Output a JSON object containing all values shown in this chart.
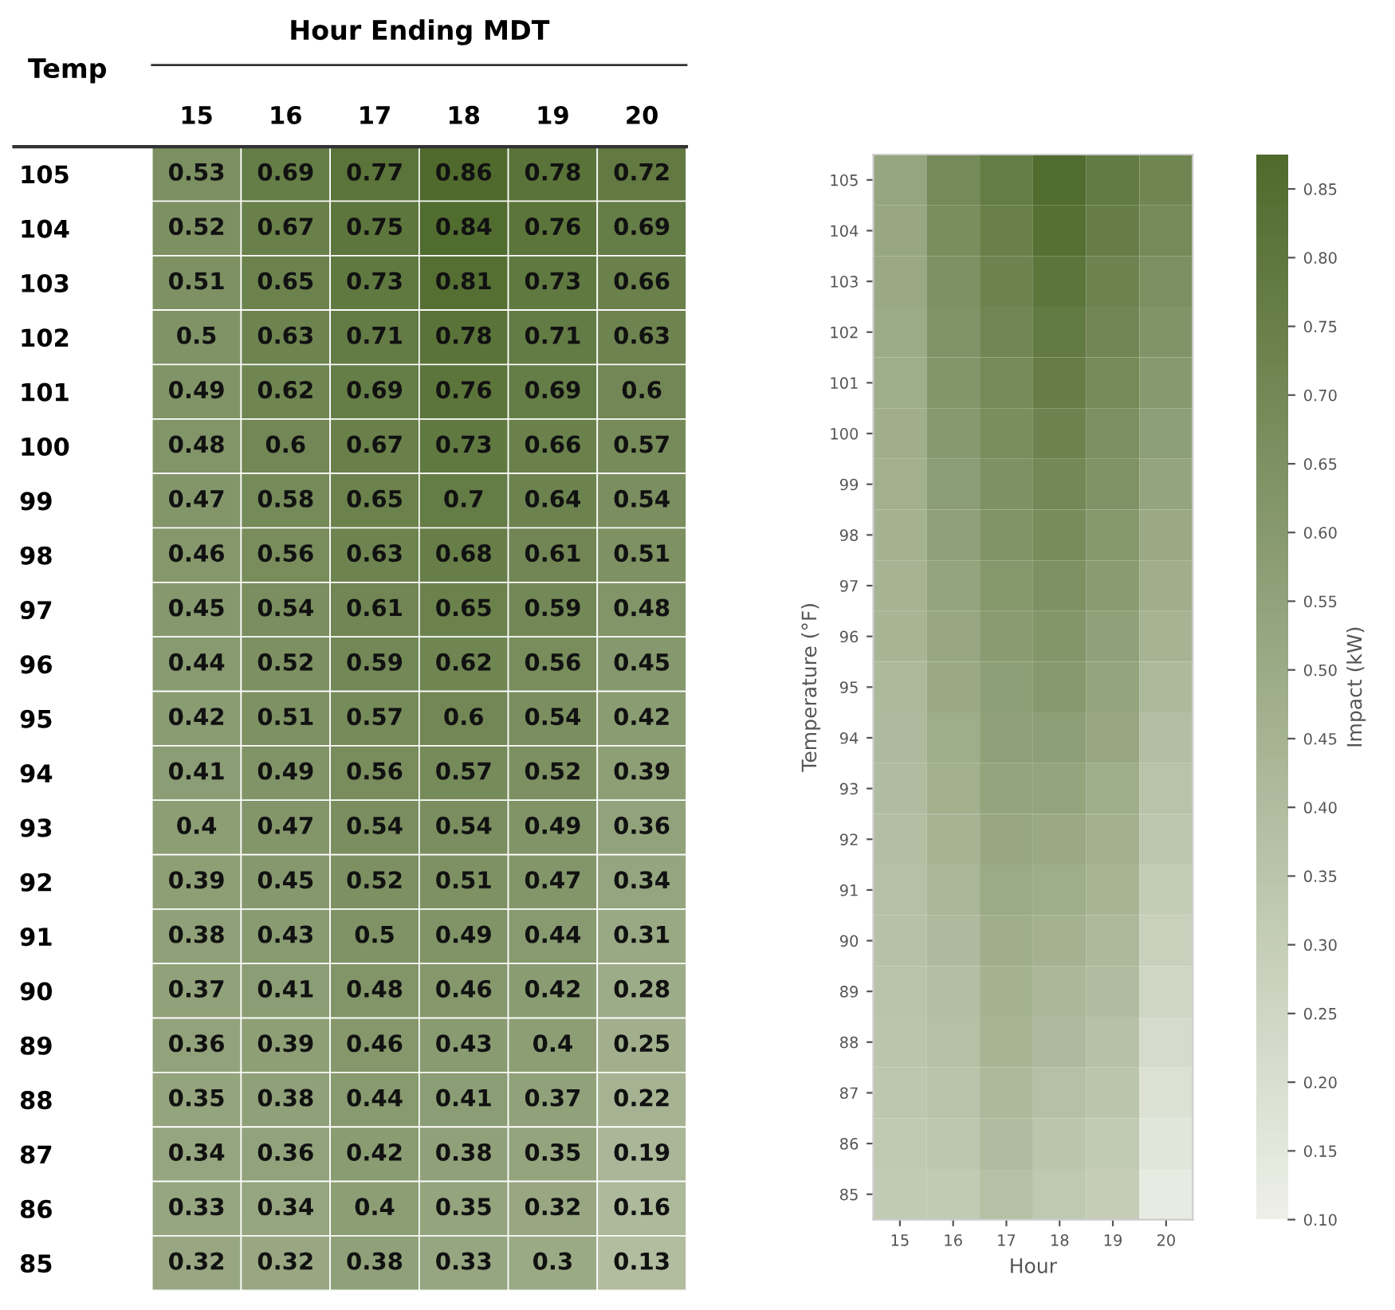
{
  "chart_data": [
    {
      "type": "heatmap",
      "title": "Hour Ending MDT",
      "ylabel": "Temp",
      "data_labels": true,
      "categories": [
        "15",
        "16",
        "17",
        "18",
        "19",
        "20"
      ],
      "y_categories": [
        "105",
        "104",
        "103",
        "102",
        "101",
        "100",
        "99",
        "98",
        "97",
        "96",
        "95",
        "94",
        "93",
        "92",
        "91",
        "90",
        "89",
        "88",
        "87",
        "86",
        "85"
      ],
      "colors": [
        "#eef0e8",
        "#4f6a2c"
      ],
      "cells": [
        [
          0.53,
          0.69,
          0.77,
          0.86,
          0.78,
          0.72
        ],
        [
          0.52,
          0.67,
          0.75,
          0.84,
          0.76,
          0.69
        ],
        [
          0.51,
          0.65,
          0.73,
          0.81,
          0.73,
          0.66
        ],
        [
          0.5,
          0.63,
          0.71,
          0.78,
          0.71,
          0.63
        ],
        [
          0.49,
          0.62,
          0.69,
          0.76,
          0.69,
          0.6
        ],
        [
          0.48,
          0.6,
          0.67,
          0.73,
          0.66,
          0.57
        ],
        [
          0.47,
          0.58,
          0.65,
          0.7,
          0.64,
          0.54
        ],
        [
          0.46,
          0.56,
          0.63,
          0.68,
          0.61,
          0.51
        ],
        [
          0.45,
          0.54,
          0.61,
          0.65,
          0.59,
          0.48
        ],
        [
          0.44,
          0.52,
          0.59,
          0.62,
          0.56,
          0.45
        ],
        [
          0.42,
          0.51,
          0.57,
          0.6,
          0.54,
          0.42
        ],
        [
          0.41,
          0.49,
          0.56,
          0.57,
          0.52,
          0.39
        ],
        [
          0.4,
          0.47,
          0.54,
          0.54,
          0.49,
          0.36
        ],
        [
          0.39,
          0.45,
          0.52,
          0.51,
          0.47,
          0.34
        ],
        [
          0.38,
          0.43,
          0.5,
          0.49,
          0.44,
          0.31
        ],
        [
          0.37,
          0.41,
          0.48,
          0.46,
          0.42,
          0.28
        ],
        [
          0.36,
          0.39,
          0.46,
          0.43,
          0.4,
          0.25
        ],
        [
          0.35,
          0.38,
          0.44,
          0.41,
          0.37,
          0.22
        ],
        [
          0.34,
          0.36,
          0.42,
          0.38,
          0.35,
          0.19
        ],
        [
          0.33,
          0.34,
          0.4,
          0.35,
          0.32,
          0.16
        ],
        [
          0.32,
          0.32,
          0.38,
          0.33,
          0.3,
          0.13
        ]
      ]
    },
    {
      "type": "heatmap",
      "xlabel": "Hour",
      "ylabel": "Temperature (°F)",
      "clabel": "Impact (kW)",
      "categories": [
        "15",
        "16",
        "17",
        "18",
        "19",
        "20"
      ],
      "y_categories": [
        "105",
        "104",
        "103",
        "102",
        "101",
        "100",
        "99",
        "98",
        "97",
        "96",
        "95",
        "94",
        "93",
        "92",
        "91",
        "90",
        "89",
        "88",
        "87",
        "86",
        "85"
      ],
      "colors": [
        "#eef0e8",
        "#4f6a2c"
      ],
      "clim": [
        0.1,
        0.875
      ],
      "cticks": [
        {
          "value": 0.1,
          "label": "0.10"
        },
        {
          "value": 0.15,
          "label": "0.15"
        },
        {
          "value": 0.2,
          "label": "0.20"
        },
        {
          "value": 0.25,
          "label": "0.25"
        },
        {
          "value": 0.3,
          "label": "0.30"
        },
        {
          "value": 0.35,
          "label": "0.35"
        },
        {
          "value": 0.4,
          "label": "0.40"
        },
        {
          "value": 0.45,
          "label": "0.45"
        },
        {
          "value": 0.5,
          "label": "0.50"
        },
        {
          "value": 0.55,
          "label": "0.55"
        },
        {
          "value": 0.6,
          "label": "0.60"
        },
        {
          "value": 0.65,
          "label": "0.65"
        },
        {
          "value": 0.7,
          "label": "0.70"
        },
        {
          "value": 0.75,
          "label": "0.75"
        },
        {
          "value": 0.8,
          "label": "0.80"
        },
        {
          "value": 0.85,
          "label": "0.85"
        }
      ],
      "cells": [
        [
          0.53,
          0.69,
          0.77,
          0.86,
          0.78,
          0.72
        ],
        [
          0.52,
          0.67,
          0.75,
          0.84,
          0.76,
          0.69
        ],
        [
          0.51,
          0.65,
          0.73,
          0.81,
          0.73,
          0.66
        ],
        [
          0.5,
          0.63,
          0.71,
          0.78,
          0.71,
          0.63
        ],
        [
          0.49,
          0.62,
          0.69,
          0.76,
          0.69,
          0.6
        ],
        [
          0.48,
          0.6,
          0.67,
          0.73,
          0.66,
          0.57
        ],
        [
          0.47,
          0.58,
          0.65,
          0.7,
          0.64,
          0.54
        ],
        [
          0.46,
          0.56,
          0.63,
          0.68,
          0.61,
          0.51
        ],
        [
          0.45,
          0.54,
          0.61,
          0.65,
          0.59,
          0.48
        ],
        [
          0.44,
          0.52,
          0.59,
          0.62,
          0.56,
          0.45
        ],
        [
          0.42,
          0.51,
          0.57,
          0.6,
          0.54,
          0.42
        ],
        [
          0.41,
          0.49,
          0.56,
          0.57,
          0.52,
          0.39
        ],
        [
          0.4,
          0.47,
          0.54,
          0.54,
          0.49,
          0.36
        ],
        [
          0.39,
          0.45,
          0.52,
          0.51,
          0.47,
          0.34
        ],
        [
          0.38,
          0.43,
          0.5,
          0.49,
          0.44,
          0.31
        ],
        [
          0.37,
          0.41,
          0.48,
          0.46,
          0.42,
          0.28
        ],
        [
          0.36,
          0.39,
          0.46,
          0.43,
          0.4,
          0.25
        ],
        [
          0.35,
          0.38,
          0.44,
          0.41,
          0.37,
          0.22
        ],
        [
          0.34,
          0.36,
          0.42,
          0.38,
          0.35,
          0.19
        ],
        [
          0.33,
          0.34,
          0.4,
          0.35,
          0.32,
          0.16
        ],
        [
          0.32,
          0.32,
          0.38,
          0.33,
          0.3,
          0.13
        ]
      ]
    }
  ]
}
